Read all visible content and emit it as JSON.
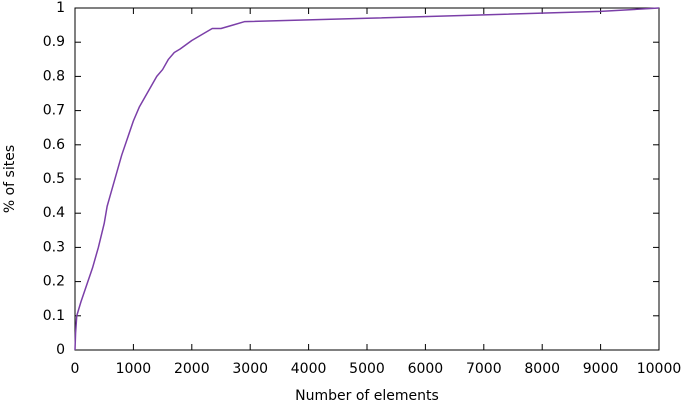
{
  "chart_data": {
    "type": "line",
    "xlabel": "Number of elements",
    "ylabel": "% of sites",
    "x": [
      0,
      10,
      30,
      100,
      200,
      300,
      400,
      500,
      550,
      600,
      700,
      800,
      900,
      1000,
      1100,
      1200,
      1300,
      1400,
      1500,
      1600,
      1700,
      1800,
      2000,
      2200,
      2350,
      2500,
      2700,
      2900,
      5000,
      7000,
      9000,
      10000
    ],
    "values": [
      0,
      0.05,
      0.1,
      0.14,
      0.19,
      0.24,
      0.3,
      0.37,
      0.42,
      0.45,
      0.51,
      0.57,
      0.62,
      0.67,
      0.71,
      0.74,
      0.77,
      0.8,
      0.82,
      0.85,
      0.87,
      0.88,
      0.905,
      0.925,
      0.94,
      0.94,
      0.95,
      0.96,
      0.97,
      0.98,
      0.99,
      1.0
    ],
    "color": "#7b3fa8",
    "xlim": [
      0,
      10000
    ],
    "ylim": [
      0,
      1
    ],
    "xticks": [
      0,
      1000,
      2000,
      3000,
      4000,
      5000,
      6000,
      7000,
      8000,
      9000,
      10000
    ],
    "yticks": [
      0,
      0.1,
      0.2,
      0.3,
      0.4,
      0.5,
      0.6,
      0.7,
      0.8,
      0.9,
      1
    ]
  }
}
